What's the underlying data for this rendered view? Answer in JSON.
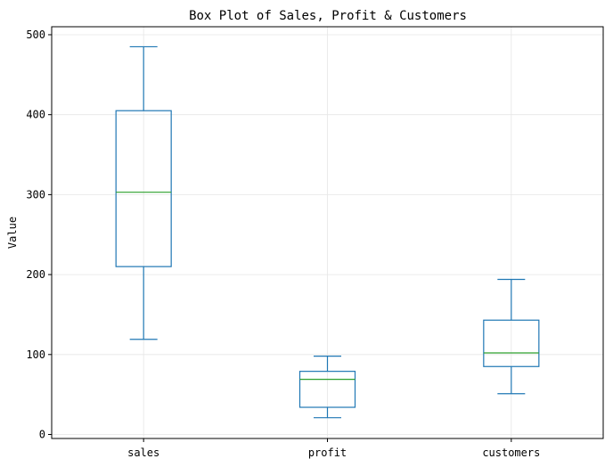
{
  "chart_data": {
    "type": "box",
    "title": "Box Plot of Sales, Profit & Customers",
    "xlabel": "",
    "ylabel": "Value",
    "ylim": [
      -5,
      510
    ],
    "yticks": [
      0,
      100,
      200,
      300,
      400,
      500
    ],
    "grid": true,
    "categories": [
      "sales",
      "profit",
      "customers"
    ],
    "boxes": [
      {
        "name": "sales",
        "whisker_low": 119,
        "q1": 210,
        "median": 303,
        "q3": 405,
        "whisker_high": 485
      },
      {
        "name": "profit",
        "whisker_low": 21,
        "q1": 34,
        "median": 69,
        "q3": 79,
        "whisker_high": 98
      },
      {
        "name": "customers",
        "whisker_low": 51,
        "q1": 85,
        "median": 102,
        "q3": 143,
        "whisker_high": 194
      }
    ],
    "colors": {
      "box": "#1f77b4",
      "median": "#2ca02c"
    }
  }
}
